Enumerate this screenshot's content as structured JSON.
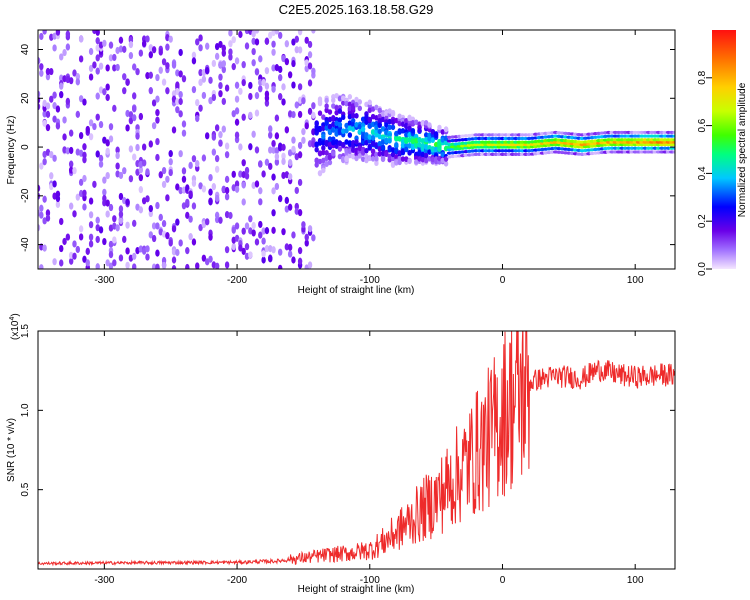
{
  "title": "C2E5.2025.163.18.58.G29",
  "chart_data": [
    {
      "type": "heatmap",
      "xlabel": "Height of straight line (km)",
      "ylabel": "Frequency (Hz)",
      "xlim": [
        -350,
        130
      ],
      "ylim": [
        -50,
        48
      ],
      "xticks": [
        -300,
        -200,
        -100,
        0,
        100
      ],
      "yticks": [
        -40,
        -20,
        0,
        20,
        40
      ],
      "colorbar": {
        "label": "Normalized spectral amplitude",
        "range": [
          0.0,
          1.0
        ],
        "ticks": [
          "0.0",
          "0.2",
          "0.4",
          "0.6",
          "0.8"
        ],
        "colors": [
          "#f4e6ff",
          "#a070ff",
          "#6a00e8",
          "#0000ff",
          "#00c8ff",
          "#00ff80",
          "#40ff00",
          "#c8ff00",
          "#ffd000",
          "#ff7000",
          "#ff1010"
        ]
      },
      "signal_track": {
        "x": [
          -180,
          -160,
          -140,
          -120,
          -100,
          -80,
          -60,
          -40,
          -20,
          0,
          20,
          40,
          60,
          80,
          100,
          130
        ],
        "frequency": [
          9,
          7,
          4,
          8,
          6,
          3,
          2,
          0,
          1,
          1,
          1,
          2,
          1,
          2,
          2,
          2
        ],
        "amplitude": [
          0.35,
          0.3,
          0.3,
          0.35,
          0.4,
          0.45,
          0.5,
          0.55,
          0.65,
          0.7,
          0.72,
          0.75,
          0.8,
          0.78,
          0.82,
          0.85
        ]
      },
      "grid": false
    },
    {
      "type": "line",
      "xlabel": "Height of straight line (km)",
      "ylabel": "SNR (10 * v/v)",
      "y_multiplier": "(x10",
      "y_multiplier_exp": "4",
      "y_multiplier_close": ")",
      "xlim": [
        -350,
        130
      ],
      "ylim": [
        0,
        15000
      ],
      "xticks": [
        -300,
        -200,
        -100,
        0,
        100
      ],
      "yticks": [
        {
          "value": 5000,
          "label": "0.5"
        },
        {
          "value": 10000,
          "label": "1.0"
        },
        {
          "value": 15000,
          "label": "1.5"
        }
      ],
      "color": "#ee2b2b",
      "series": [
        {
          "x": [
            -350,
            -300,
            -250,
            -200,
            -170,
            -150,
            -130,
            -115,
            -100,
            -90,
            -80,
            -70,
            -60,
            -50,
            -40,
            -30,
            -20,
            -10,
            -5,
            0,
            5,
            10,
            15,
            20,
            25,
            30,
            40,
            50,
            60,
            70,
            75,
            80,
            90,
            100,
            110,
            120,
            130
          ],
          "values": [
            350,
            380,
            400,
            420,
            500,
            700,
            900,
            1000,
            1200,
            1700,
            2300,
            3000,
            3700,
            4400,
            5300,
            6300,
            7300,
            8300,
            9000,
            9800,
            10400,
            10800,
            11200,
            11700,
            11900,
            12000,
            12150,
            12100,
            12000,
            12500,
            12600,
            12400,
            12200,
            12100,
            12150,
            12250,
            12200
          ]
        }
      ],
      "grid": false
    }
  ]
}
